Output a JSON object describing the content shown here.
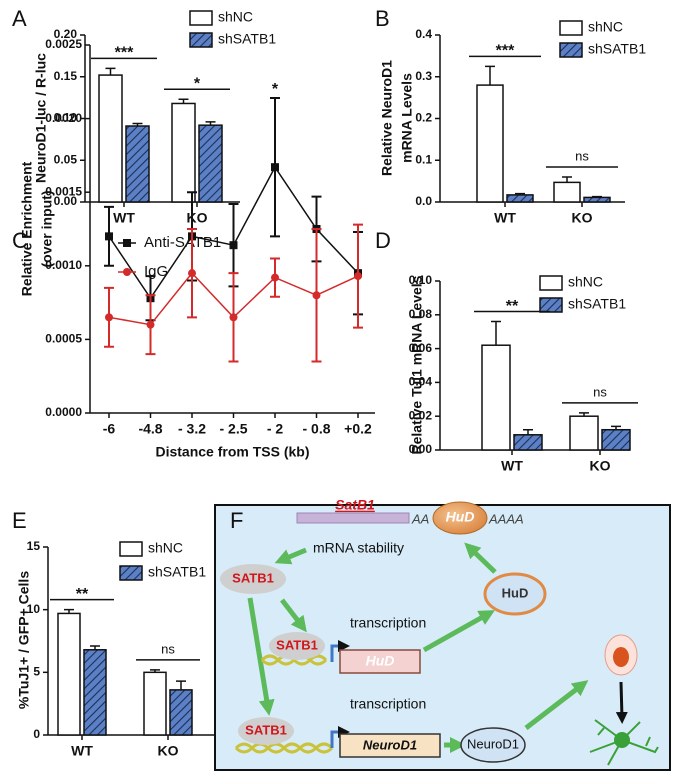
{
  "chart_data": [
    {
      "type": "bar",
      "panel": "A",
      "ylabel": "NeuroD1-luc / R-luc",
      "categories": [
        "WT",
        "KO"
      ],
      "series": [
        {
          "name": "shNC",
          "color": "#ffffff",
          "hatch": false,
          "values": [
            0.152,
            0.118
          ],
          "errors": [
            0.008,
            0.005
          ]
        },
        {
          "name": "shSATB1",
          "color": "#5b80c6",
          "hatch": true,
          "values": [
            0.091,
            0.092
          ],
          "errors": [
            0.003,
            0.004
          ]
        }
      ],
      "annotations": [
        "***",
        "*"
      ],
      "ylim": [
        0,
        0.2
      ],
      "yticks": [
        {
          "value": 0,
          "label": "0.00"
        },
        {
          "value": 0.05,
          "label": "0.05"
        },
        {
          "value": 0.1,
          "label": "0.10"
        },
        {
          "value": 0.15,
          "label": "0.15"
        },
        {
          "value": 0.2,
          "label": "0.20"
        }
      ]
    },
    {
      "type": "bar",
      "panel": "B",
      "ylabel": [
        "Relative NeuroD1",
        "mRNA Levels"
      ],
      "categories": [
        "WT",
        "KO"
      ],
      "series": [
        {
          "name": "shNC",
          "color": "#ffffff",
          "hatch": false,
          "values": [
            0.28,
            0.047
          ],
          "errors": [
            0.045,
            0.013
          ]
        },
        {
          "name": "shSATB1",
          "color": "#5b80c6",
          "hatch": true,
          "values": [
            0.017,
            0.011
          ],
          "errors": [
            0.003,
            0.002
          ]
        }
      ],
      "annotations": [
        "***",
        "ns"
      ],
      "ylim": [
        0,
        0.4
      ],
      "yticks": [
        {
          "value": 0,
          "label": "0.0"
        },
        0.1,
        0.2,
        0.3,
        0.4
      ]
    },
    {
      "type": "line",
      "panel": "C",
      "ylabel": [
        "Relative Enrichment",
        "(over input)"
      ],
      "xlabel": "Distance from TSS (kb)",
      "categories": [
        "-6",
        "-4.8",
        "- 3.2",
        "- 2.5",
        "- 2",
        "- 0.8",
        "+0.2"
      ],
      "series": [
        {
          "name": "Anti-SATB1",
          "color": "#111111",
          "marker": "square",
          "values": [
            0.0012,
            0.00078,
            0.0012,
            0.00114,
            0.00167,
            0.00125,
            0.00095
          ],
          "errors": [
            0.0002,
            0.00015,
            0.0003,
            0.00028,
            0.00047,
            0.00022,
            0.00028
          ]
        },
        {
          "name": "IgG",
          "color": "#d42a2a",
          "marker": "circle",
          "values": [
            0.00065,
            0.0006,
            0.00095,
            0.00065,
            0.00092,
            0.0008,
            0.00093
          ],
          "errors": [
            0.0002,
            0.0002,
            0.0003,
            0.0003,
            0.00013,
            0.00045,
            0.00035
          ]
        }
      ],
      "annotations": [
        null,
        null,
        null,
        null,
        "*",
        null,
        null
      ],
      "ylim": [
        0,
        0.0025
      ],
      "yticks": [
        {
          "value": 0,
          "label": "0.0000"
        },
        {
          "value": 0.0005,
          "label": "0.0005"
        },
        {
          "value": 0.001,
          "label": "0.0010"
        },
        {
          "value": 0.0015,
          "label": "0.0015"
        },
        {
          "value": 0.002,
          "label": "0.0020"
        },
        {
          "value": 0.0025,
          "label": "0.0025"
        }
      ]
    },
    {
      "type": "bar",
      "panel": "D",
      "ylabel": "Relative Tuj1 mRNA Levels",
      "categories": [
        "WT",
        "KO"
      ],
      "series": [
        {
          "name": "shNC",
          "color": "#ffffff",
          "hatch": false,
          "values": [
            0.062,
            0.02
          ],
          "errors": [
            0.014,
            0.002
          ]
        },
        {
          "name": "shSATB1",
          "color": "#5b80c6",
          "hatch": true,
          "values": [
            0.009,
            0.012
          ],
          "errors": [
            0.003,
            0.002
          ]
        }
      ],
      "annotations": [
        "**",
        "ns"
      ],
      "ylim": [
        0,
        0.1
      ],
      "yticks": [
        {
          "value": 0,
          "label": "0.00"
        },
        0.02,
        0.04,
        0.06,
        0.08,
        {
          "value": 0.1,
          "label": "0.10"
        }
      ]
    },
    {
      "type": "bar",
      "panel": "E",
      "ylabel": "%TuJ1+ / GFP+ Cells",
      "categories": [
        "WT",
        "KO"
      ],
      "series": [
        {
          "name": "shNC",
          "color": "#ffffff",
          "hatch": false,
          "values": [
            9.7,
            5.0
          ],
          "errors": [
            0.3,
            0.2
          ]
        },
        {
          "name": "shSATB1",
          "color": "#5b80c6",
          "hatch": true,
          "values": [
            6.8,
            3.6
          ],
          "errors": [
            0.3,
            0.7
          ]
        }
      ],
      "annotations": [
        "**",
        "ns"
      ],
      "ylim": [
        0,
        15
      ],
      "yticks": [
        0,
        5,
        10,
        15
      ]
    }
  ],
  "diagram": {
    "panel": "F",
    "mrna_gene": "SatB1",
    "poly_a_left": "AA",
    "mrna_binder": "HuD",
    "poly_a_right": "AAAA",
    "mrna_stability": "mRNA stability",
    "satb1_nodes": [
      "SATB1",
      "SATB1",
      "SATB1"
    ],
    "hud_protein": "HuD",
    "transcription_labels": [
      "transcription",
      "transcription"
    ],
    "gene_boxes": [
      "HuD",
      "NeuroD1"
    ],
    "neurod1_protein": "NeuroD1"
  }
}
